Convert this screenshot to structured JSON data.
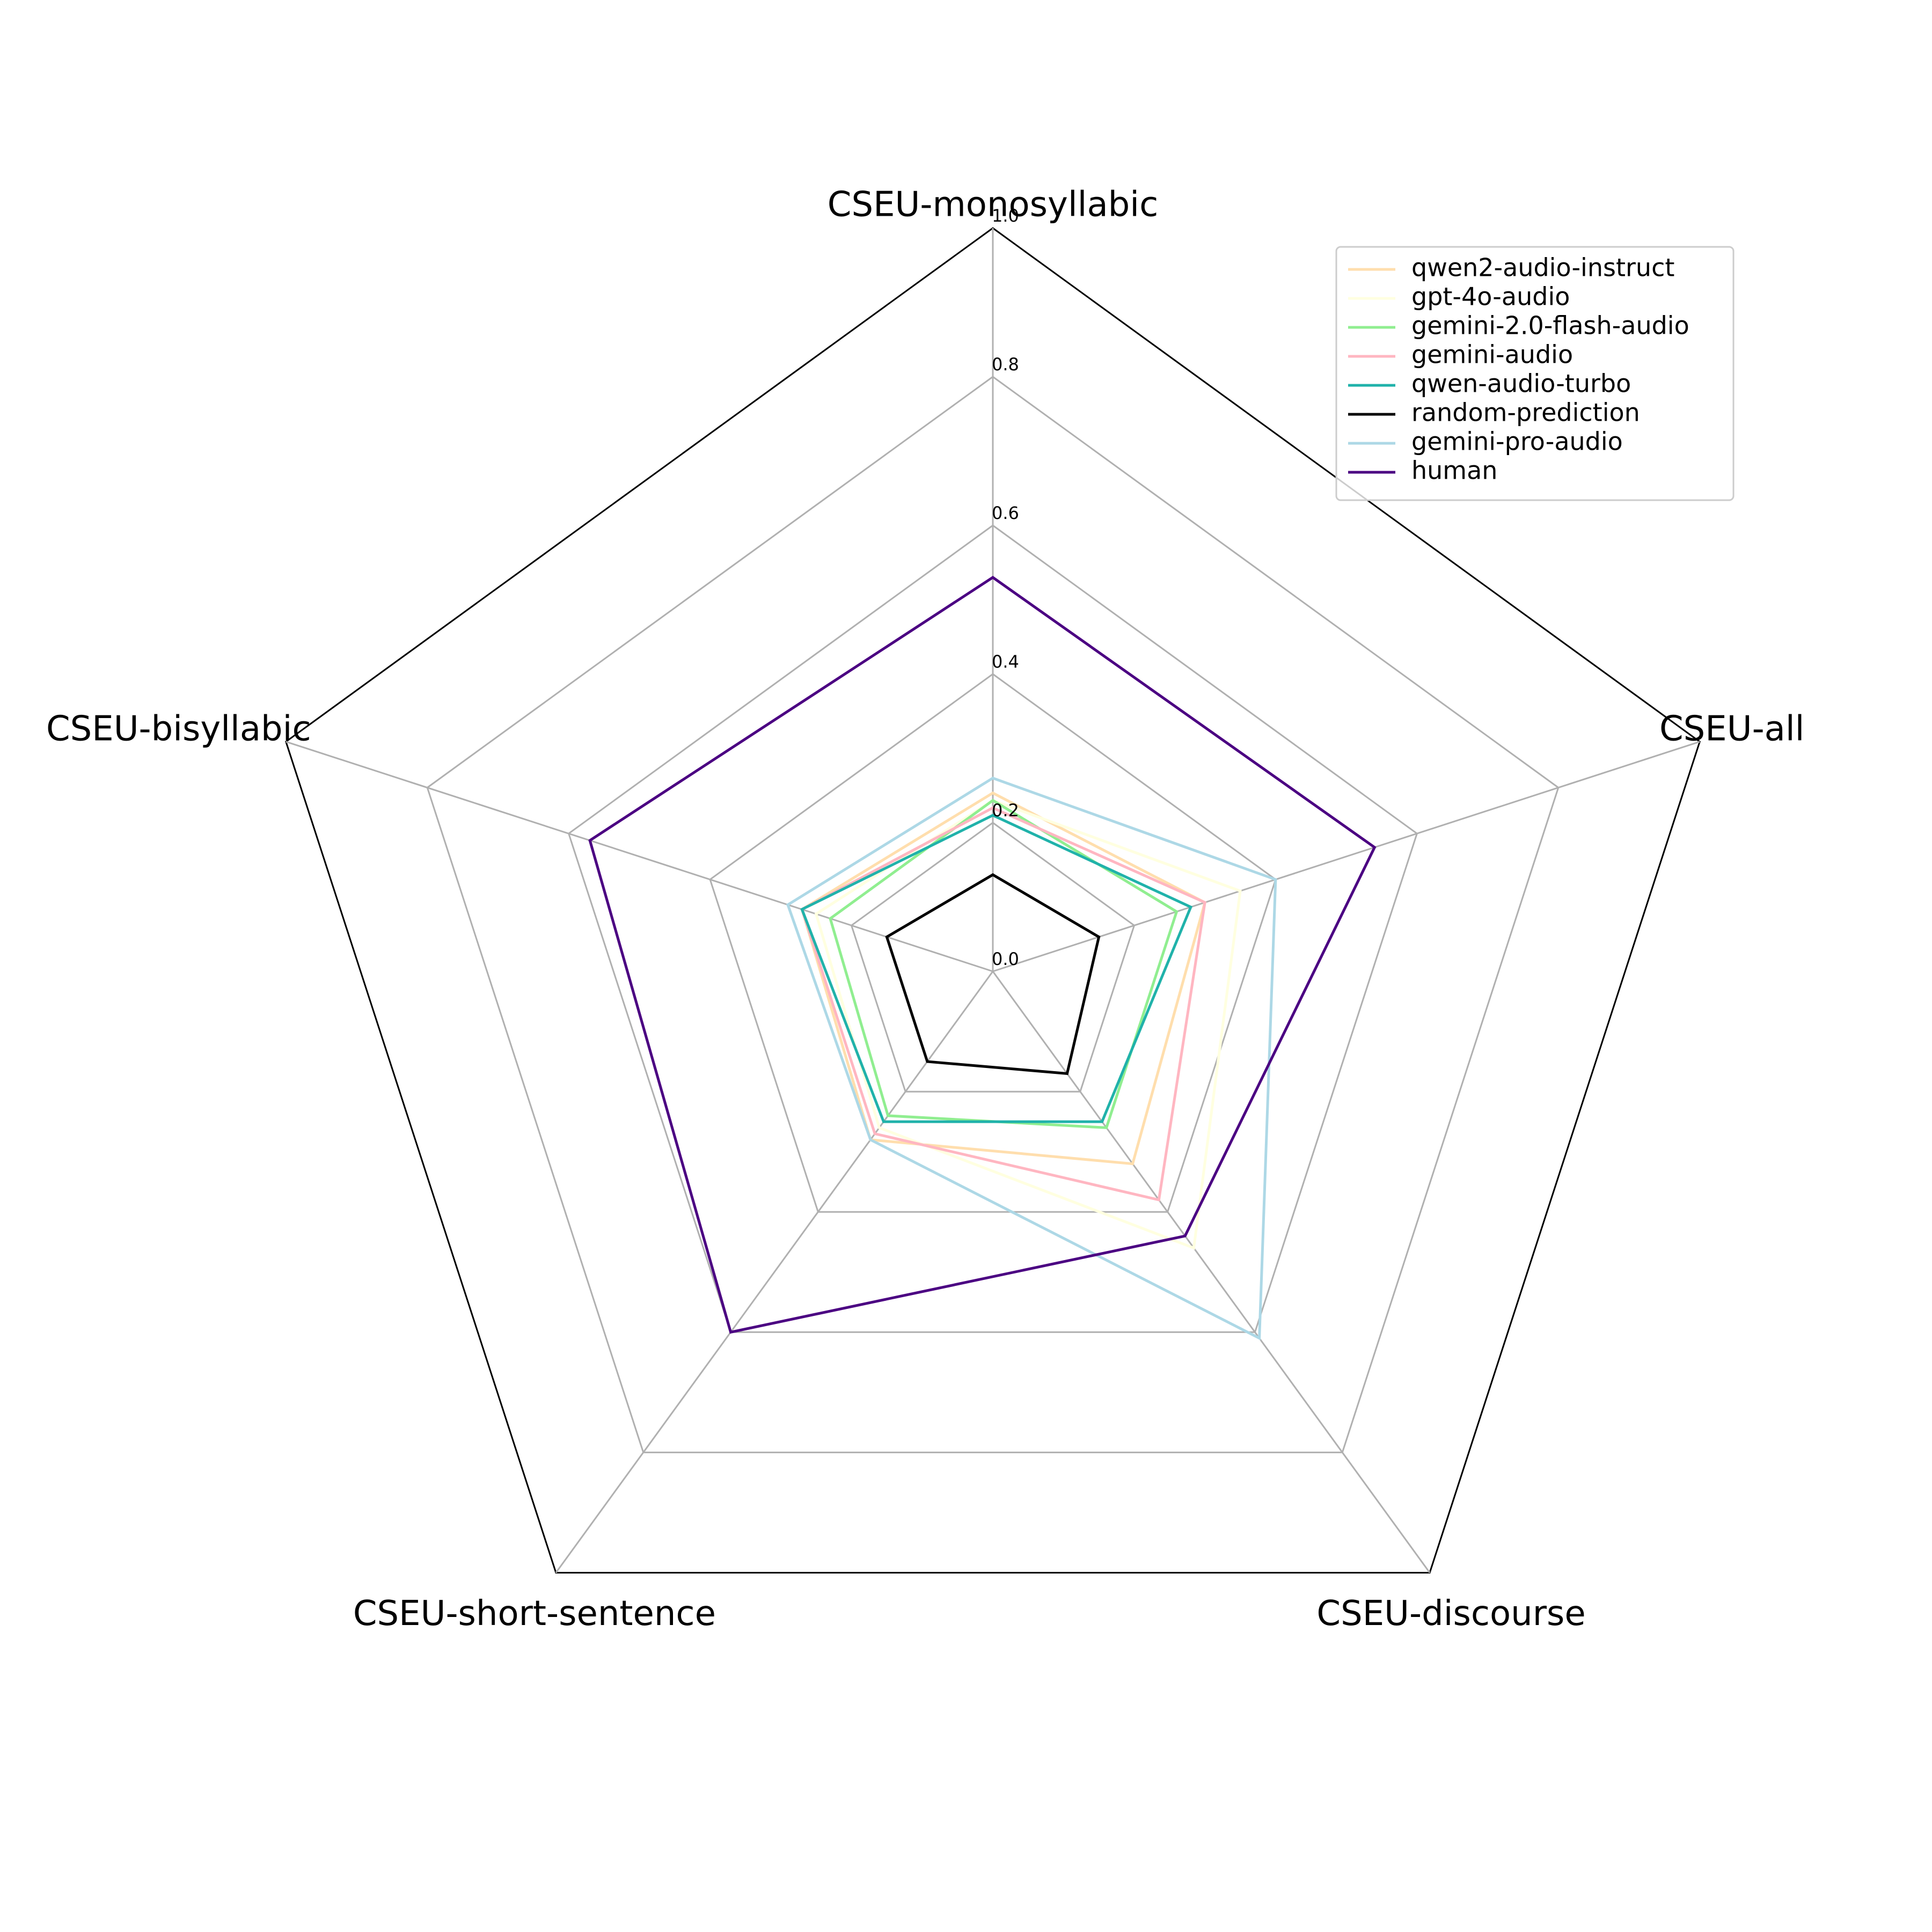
{
  "chart_data": {
    "type": "radar",
    "axes": [
      "CSEU-monosyllabic",
      "CSEU-all",
      "CSEU-discourse",
      "CSEU-short-sentence",
      "CSEU-bisyllabic"
    ],
    "rlim": [
      0,
      1.0
    ],
    "ticks": [
      0.0,
      0.2,
      0.4,
      0.6,
      0.8,
      1.0
    ],
    "tick_labels": [
      "0.0",
      "0.2",
      "0.4",
      "0.6",
      "0.8",
      "1.0"
    ],
    "grid": true,
    "legend_placement": "top-right",
    "series": [
      {
        "name": "qwen2-audio-instruct",
        "color": "#ffdead",
        "values": [
          0.24,
          0.3,
          0.32,
          0.28,
          0.27
        ]
      },
      {
        "name": "gpt-4o-audio",
        "color": "#ffffe0",
        "values": [
          0.23,
          0.35,
          0.46,
          0.26,
          0.25
        ]
      },
      {
        "name": "gemini-2.0-flash-audio",
        "color": "#90ee90",
        "values": [
          0.23,
          0.26,
          0.26,
          0.24,
          0.23
        ]
      },
      {
        "name": "gemini-audio",
        "color": "#ffb6c1",
        "values": [
          0.22,
          0.3,
          0.38,
          0.27,
          0.27
        ]
      },
      {
        "name": "qwen-audio-turbo",
        "color": "#20b2aa",
        "values": [
          0.21,
          0.28,
          0.25,
          0.25,
          0.27
        ]
      },
      {
        "name": "random-prediction",
        "color": "#000000",
        "values": [
          0.13,
          0.15,
          0.17,
          0.15,
          0.15
        ]
      },
      {
        "name": "gemini-pro-audio",
        "color": "#add8e6",
        "values": [
          0.26,
          0.4,
          0.61,
          0.28,
          0.29
        ]
      },
      {
        "name": "human",
        "color": "#4b0082",
        "values": [
          0.53,
          0.54,
          0.44,
          0.6,
          0.57
        ]
      }
    ]
  }
}
